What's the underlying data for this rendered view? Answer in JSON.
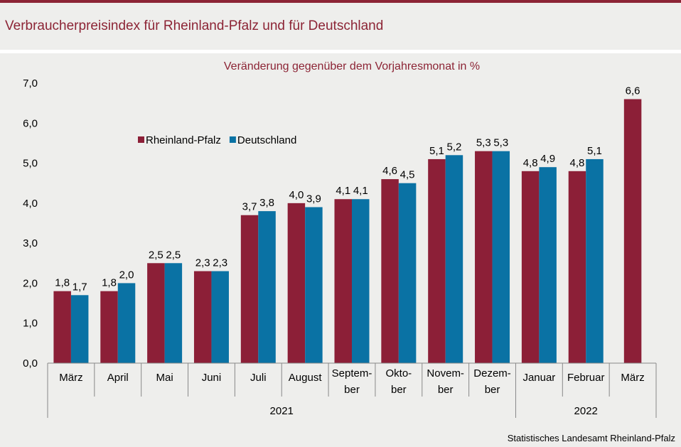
{
  "header": {
    "title": "Verbraucherpreisindex für Rheinland-Pfalz und für Deutschland"
  },
  "footer": {
    "source": "Statistisches Landesamt Rheinland-Pfalz"
  },
  "colors": {
    "rheinland_pfalz": "#8c1f37",
    "deutschland": "#0a72a4",
    "accent": "#8c2435"
  },
  "chart_data": {
    "type": "bar",
    "title": "Veränderung gegenüber dem Vorjahresmonat in %",
    "categories": [
      [
        "März"
      ],
      [
        "April"
      ],
      [
        "Mai"
      ],
      [
        "Juni"
      ],
      [
        "Juli"
      ],
      [
        "August"
      ],
      [
        "Septem-",
        "ber"
      ],
      [
        "Okto-",
        "ber"
      ],
      [
        "Novem-",
        "ber"
      ],
      [
        "Dezem-",
        "ber"
      ],
      [
        "Januar"
      ],
      [
        "Februar"
      ],
      [
        "März"
      ]
    ],
    "groups": [
      {
        "label": "2021",
        "from": 0,
        "to": 9
      },
      {
        "label": "2022",
        "from": 10,
        "to": 12
      }
    ],
    "series": [
      {
        "name": "Rheinland-Pfalz",
        "values": [
          1.8,
          1.8,
          2.5,
          2.3,
          3.7,
          4.0,
          4.1,
          4.6,
          5.1,
          5.3,
          4.8,
          4.8,
          6.6
        ]
      },
      {
        "name": "Deutschland",
        "values": [
          1.7,
          2.0,
          2.5,
          2.3,
          3.8,
          3.9,
          4.1,
          4.5,
          5.2,
          5.3,
          4.9,
          5.1,
          null
        ]
      }
    ],
    "yticks": [
      "0,0",
      "1,0",
      "2,0",
      "3,0",
      "4,0",
      "5,0",
      "6,0",
      "7,0"
    ],
    "ylim": [
      0,
      7
    ],
    "grid": false,
    "legend_position": "top-left",
    "decimal_separator": ","
  }
}
